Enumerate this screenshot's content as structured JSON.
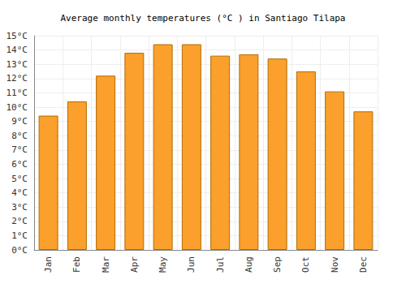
{
  "chart_data": {
    "type": "bar",
    "title": "Average monthly temperatures (°C ) in Santiago Tilapa",
    "categories": [
      "Jan",
      "Feb",
      "Mar",
      "Apr",
      "May",
      "Jun",
      "Jul",
      "Aug",
      "Sep",
      "Oct",
      "Nov",
      "Dec"
    ],
    "values": [
      9.4,
      10.4,
      12.2,
      13.8,
      14.4,
      14.4,
      13.6,
      13.7,
      13.4,
      12.5,
      11.1,
      9.7
    ],
    "color": "#fba02c",
    "ylim": [
      0,
      15
    ],
    "yticks": [
      {
        "value": 0,
        "label": "0°C"
      },
      {
        "value": 1,
        "label": "1°C"
      },
      {
        "value": 2,
        "label": "2°C"
      },
      {
        "value": 3,
        "label": "3°C"
      },
      {
        "value": 4,
        "label": "4°C"
      },
      {
        "value": 5,
        "label": "5°C"
      },
      {
        "value": 6,
        "label": "6°C"
      },
      {
        "value": 7,
        "label": "7°C"
      },
      {
        "value": 8,
        "label": "8°C"
      },
      {
        "value": 9,
        "label": "9°C"
      },
      {
        "value": 10,
        "label": "10°C"
      },
      {
        "value": 11,
        "label": "11°C"
      },
      {
        "value": 12,
        "label": "12°C"
      },
      {
        "value": 13,
        "label": "13°C"
      },
      {
        "value": 14,
        "label": "14°C"
      },
      {
        "value": 15,
        "label": "15°C"
      }
    ],
    "grid": true
  }
}
